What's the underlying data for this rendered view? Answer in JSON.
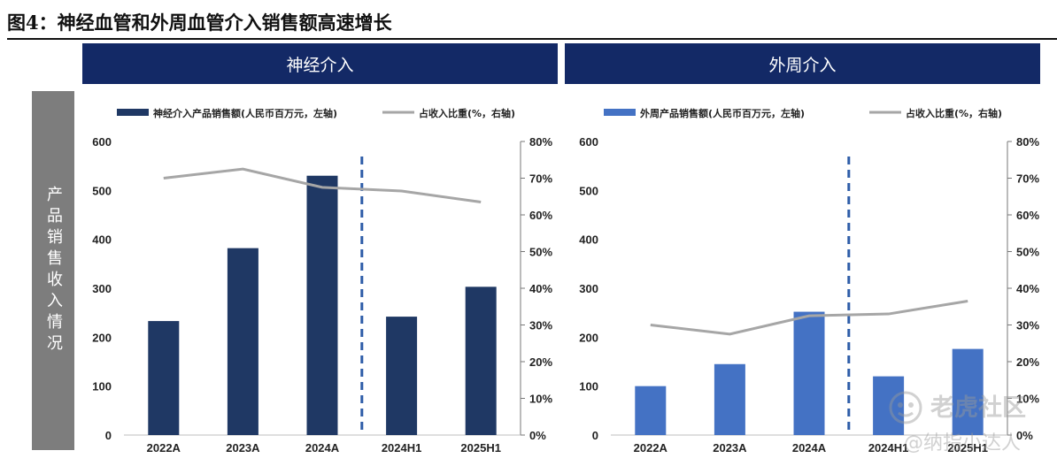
{
  "figure_title": "图4：神经血管和外周血管介入销售额高速增长",
  "side_label": "产品销售收入情况",
  "panels": [
    {
      "header": "神经介入"
    },
    {
      "header": "外周介入"
    }
  ],
  "colors": {
    "header_bg": "#132966",
    "neuro_bar": "#1f3864",
    "periph_bar": "#4472c4",
    "line": "#a6a6a6",
    "divider": "#2e5da8",
    "side_bg": "#7d7d7d"
  },
  "chart_data": [
    {
      "type": "bar+line",
      "categories": [
        "2022A",
        "2023A",
        "2024A",
        "2024H1",
        "2025H1"
      ],
      "series": [
        {
          "name": "神经介入产品销售额(人民币百万元，左轴)",
          "kind": "bar",
          "axis": "left",
          "values": [
            233,
            382,
            530,
            242,
            303
          ]
        },
        {
          "name": "占收入比重(%，右轴)",
          "kind": "line",
          "axis": "right",
          "values": [
            70,
            72.5,
            67.5,
            66.5,
            63.5
          ]
        }
      ],
      "y_left": {
        "min": 0,
        "max": 600,
        "ticks": [
          "0",
          "100",
          "200",
          "300",
          "400",
          "500",
          "600"
        ]
      },
      "y_right": {
        "min": 0,
        "max": 80,
        "ticks": [
          "0%",
          "10%",
          "20%",
          "30%",
          "40%",
          "50%",
          "60%",
          "70%",
          "80%"
        ]
      },
      "divider_after_index": 2
    },
    {
      "type": "bar+line",
      "categories": [
        "2022A",
        "2023A",
        "2024A",
        "2024H1",
        "2025H1"
      ],
      "series": [
        {
          "name": "外周产品销售额(人民币百万元，左轴)",
          "kind": "bar",
          "axis": "left",
          "values": [
            100,
            145,
            252,
            120,
            176
          ]
        },
        {
          "name": "占收入比重(%，右轴)",
          "kind": "line",
          "axis": "right",
          "values": [
            30,
            27.5,
            32.5,
            33,
            36.5
          ]
        }
      ],
      "y_left": {
        "min": 0,
        "max": 600,
        "ticks": [
          "0",
          "100",
          "200",
          "300",
          "400",
          "500",
          "600"
        ]
      },
      "y_right": {
        "min": 0,
        "max": 80,
        "ticks": [
          "0%",
          "10%",
          "20%",
          "30%",
          "40%",
          "50%",
          "60%",
          "70%",
          "80%"
        ]
      },
      "divider_after_index": 2
    }
  ],
  "watermark": {
    "brand": "老虎社区",
    "user": "@纳指小达人"
  }
}
